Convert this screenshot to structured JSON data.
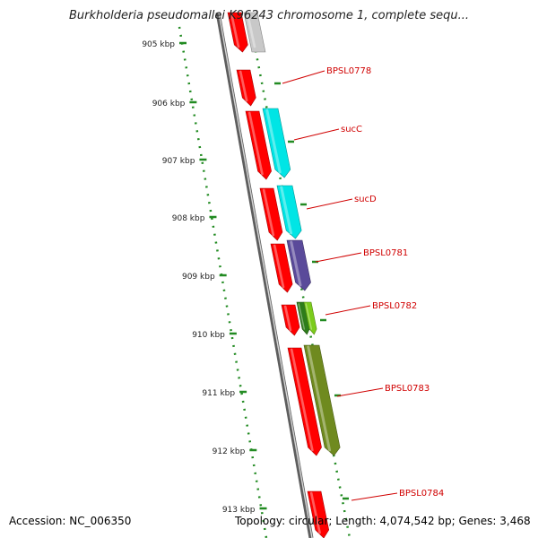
{
  "title": "Burkholderia pseudomallei K96243 chromosome 1, complete sequ...",
  "ruler": {
    "ticks": [
      "905 kbp",
      "906 kbp",
      "907 kbp",
      "908 kbp",
      "909 kbp",
      "910 kbp",
      "911 kbp",
      "912 kbp",
      "913 kbp"
    ]
  },
  "genes": [
    {
      "label": "BPSL0778",
      "strand": "reverse",
      "color": "#ff0000"
    },
    {
      "label": "sucC",
      "strand": "forward",
      "color": "#00e5e5"
    },
    {
      "label": "sucD",
      "strand": "forward",
      "color": "#00e5e5"
    },
    {
      "label": "BPSL0781",
      "strand": "forward",
      "color": "#5a4a9a"
    },
    {
      "label": "BPSL0782",
      "strand": "forward",
      "color": "#7ccc1c"
    },
    {
      "label": "BPSL0783",
      "strand": "forward",
      "color": "#6f8a1f"
    },
    {
      "label": "BPSL0784",
      "strand": "reverse",
      "color": "#ff0000"
    }
  ],
  "colors": {
    "label": "#d00000",
    "tick": "#228b22",
    "backbone": "#8a8a8a",
    "cds": "#ff0000",
    "pseudo": "#c8c8c8"
  },
  "footer": {
    "accession": "Accession: NC_006350",
    "summary": "Topology: circular; Length: 4,074,542 bp; Genes: 3,468"
  }
}
